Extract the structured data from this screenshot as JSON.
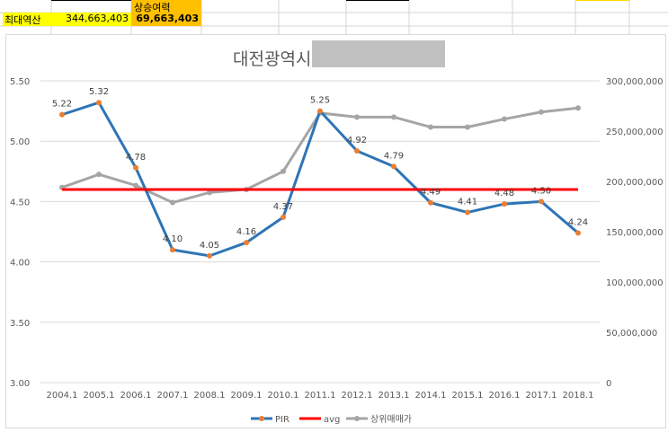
{
  "sheet": {
    "label_max": "최대역산",
    "value_max": "344,663,403",
    "label_rise": "상승여력",
    "value_rise": "69,663,403"
  },
  "colors": {
    "pir": "#2e75b6",
    "marker": "#ed7d31",
    "avg": "#ff0000",
    "price": "#a5a5a5",
    "yellow": "#ffff00",
    "orange": "#ffc000"
  },
  "chart_data": {
    "type": "line",
    "title": "대전광역시",
    "categories": [
      "2004.1",
      "2005.1",
      "2006.1",
      "2007.1",
      "2008.1",
      "2009.1",
      "2010.1",
      "2011.1",
      "2012.1",
      "2013.1",
      "2014.1",
      "2015.1",
      "2016.1",
      "2017.1",
      "2018.1"
    ],
    "left_axis": {
      "ylim": [
        3.0,
        5.5
      ],
      "ticks": [
        "3.00",
        "3.50",
        "4.00",
        "4.50",
        "5.00",
        "5.50"
      ]
    },
    "right_axis": {
      "ylim": [
        0,
        300000000
      ],
      "ticks": [
        "0",
        "50,000,000",
        "100,000,000",
        "150,000,000",
        "200,000,000",
        "250,000,000",
        "300,000,000"
      ]
    },
    "series": [
      {
        "name": "PIR",
        "axis": "left",
        "values": [
          5.22,
          5.32,
          4.78,
          4.1,
          4.05,
          4.16,
          4.37,
          5.25,
          4.92,
          4.79,
          4.49,
          4.41,
          4.48,
          4.5,
          4.24
        ],
        "labels": [
          "5.22",
          "5.32",
          "4.78",
          "4.10",
          "4.05",
          "4.16",
          "4.37",
          "5.25",
          "4.92",
          "4.79",
          "4.49",
          "4.41",
          "4.48",
          "4.50",
          "4.24"
        ]
      },
      {
        "name": "avg",
        "axis": "left",
        "values": [
          4.6,
          4.6,
          4.6,
          4.6,
          4.6,
          4.6,
          4.6,
          4.6,
          4.6,
          4.6,
          4.6,
          4.6,
          4.6,
          4.6,
          4.6
        ]
      },
      {
        "name": "상위매매가",
        "axis": "right",
        "values": [
          194000000,
          207000000,
          196000000,
          179000000,
          189000000,
          192000000,
          210000000,
          268000000,
          264000000,
          264000000,
          254000000,
          254000000,
          262000000,
          269000000,
          273000000
        ]
      }
    ],
    "legend": "bottom"
  }
}
